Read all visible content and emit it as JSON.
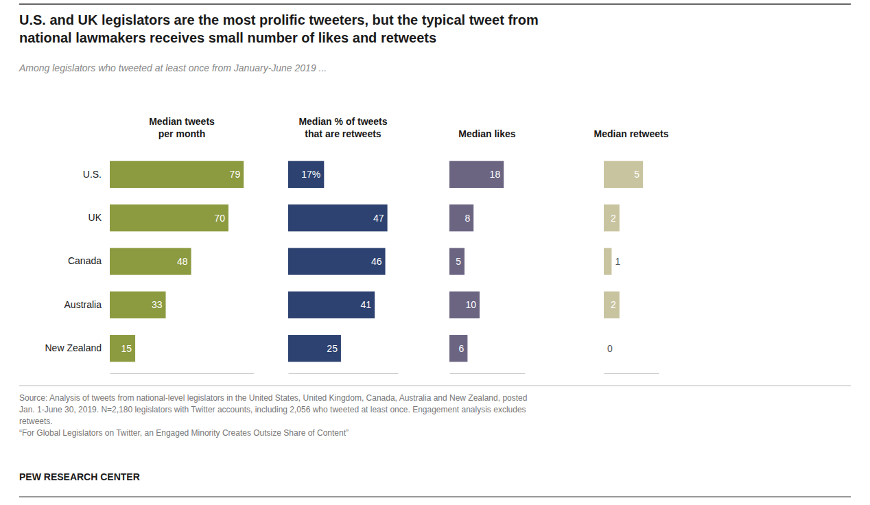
{
  "title": "U.S. and UK legislators are the most prolific tweeters, but the typical tweet from\nnational lawmakers receives small number of likes and retweets",
  "subtitle": "Among legislators who tweeted at least once from January-June 2019 ...",
  "annotations": [
    "Source: Analysis of tweets from national-level legislators in the United States, United Kingdom, Canada, Australia and New Zealand, posted\nJan. 1-June 30, 2019. N=2,180 legislators with Twitter accounts, including 2,056 who tweeted at least once. Engagement analysis excludes\nretweets.\n“For Global Legislators on Twitter, an Engaged Minority Creates Outsize Share of Content”",
    "PEW RESEARCH CENTER"
  ],
  "chart_data": [
    {
      "type": "bar",
      "orientation": "horizontal",
      "title": "Median tweets\nper month",
      "categories": [
        "U.S.",
        "UK",
        "Canada",
        "Australia",
        "New Zealand"
      ],
      "values": [
        79,
        70,
        48,
        33,
        15
      ],
      "color": "#8c9a40",
      "xlim": [
        0,
        85
      ],
      "data_labels": true,
      "tick_labels": "y"
    },
    {
      "type": "bar",
      "orientation": "horizontal",
      "title": "Median % of tweets\nthat are retweets",
      "categories": [
        "U.S.",
        "UK",
        "Canada",
        "Australia",
        "New Zealand"
      ],
      "values": [
        17,
        47,
        46,
        41,
        25
      ],
      "value_labels": [
        "17%",
        "47",
        "46",
        "41",
        "25"
      ],
      "color": "#2d4270",
      "xlim": [
        0,
        52
      ],
      "data_labels": true,
      "tick_labels": false
    },
    {
      "type": "bar",
      "orientation": "horizontal",
      "title": "Median likes",
      "categories": [
        "U.S.",
        "UK",
        "Canada",
        "Australia",
        "New Zealand"
      ],
      "values": [
        18,
        8,
        5,
        10,
        6
      ],
      "color": "#6b6582",
      "xlim": [
        0,
        25
      ],
      "data_labels": true,
      "tick_labels": false
    },
    {
      "type": "bar",
      "orientation": "horizontal",
      "title": "Median retweets",
      "categories": [
        "U.S.",
        "UK",
        "Canada",
        "Australia",
        "New Zealand"
      ],
      "values": [
        5,
        2,
        1,
        2,
        0
      ],
      "color": "#c8c4a0",
      "xlim": [
        0,
        7
      ],
      "data_labels": true,
      "tick_labels": false
    }
  ]
}
